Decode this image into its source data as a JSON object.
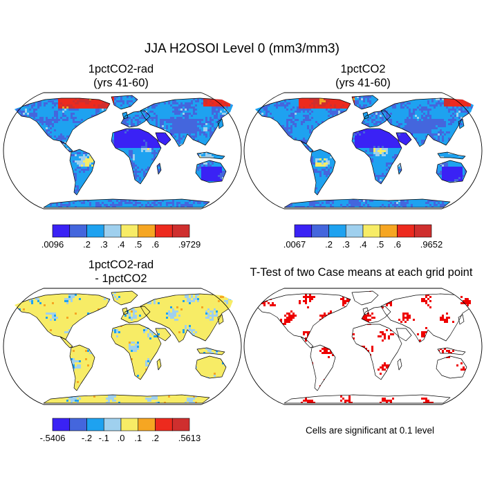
{
  "title": "JJA H2OSOI Level 0 (mm3/mm3)",
  "chart_data": [
    {
      "type": "heatmap",
      "panel": "1pctCO2-rad",
      "title_lines": [
        "1pctCO2-rad",
        "(yrs 41-60)"
      ],
      "projection": "Robinson",
      "colorbar": {
        "colors": [
          "#3a22f5",
          "#4466dd",
          "#1ea2f0",
          "#9fd0ee",
          "#f7ec66",
          "#f6a622",
          "#ed2a1e",
          "#cf2f2e"
        ],
        "tick_labels": [
          ".0096",
          ".2",
          ".3",
          ".4",
          ".5",
          ".6",
          ".9729"
        ],
        "min": 0.0096,
        "max": 0.9729
      }
    },
    {
      "type": "heatmap",
      "panel": "1pctCO2",
      "title_lines": [
        "1pctCO2",
        "(yrs 41-60)"
      ],
      "projection": "Robinson",
      "colorbar": {
        "colors": [
          "#3a22f5",
          "#4466dd",
          "#1ea2f0",
          "#9fd0ee",
          "#f7ec66",
          "#f6a622",
          "#ed2a1e",
          "#cf2f2e"
        ],
        "tick_labels": [
          ".0067",
          ".2",
          ".3",
          ".4",
          ".5",
          ".6",
          ".9652"
        ],
        "min": 0.0067,
        "max": 0.9652
      }
    },
    {
      "type": "heatmap",
      "panel": "difference",
      "title_lines": [
        "1pctCO2-rad",
        "- 1pctCO2"
      ],
      "projection": "Robinson",
      "colorbar": {
        "colors": [
          "#3a22f5",
          "#4466dd",
          "#1ea2f0",
          "#9fd0ee",
          "#f7ec66",
          "#f6a622",
          "#ed2a1e",
          "#cf2f2e"
        ],
        "tick_labels": [
          "-.5406",
          "-.2",
          "-.1",
          ".0",
          ".1",
          ".2",
          ".5613"
        ],
        "min": -0.5406,
        "max": 0.5613
      }
    },
    {
      "type": "heatmap",
      "panel": "t-test",
      "title_lines": [
        "T-Test of two Case means at each grid point"
      ],
      "projection": "Robinson",
      "significance_color": "#ee0000",
      "note": "Cells are significant at 0.1 level"
    }
  ]
}
